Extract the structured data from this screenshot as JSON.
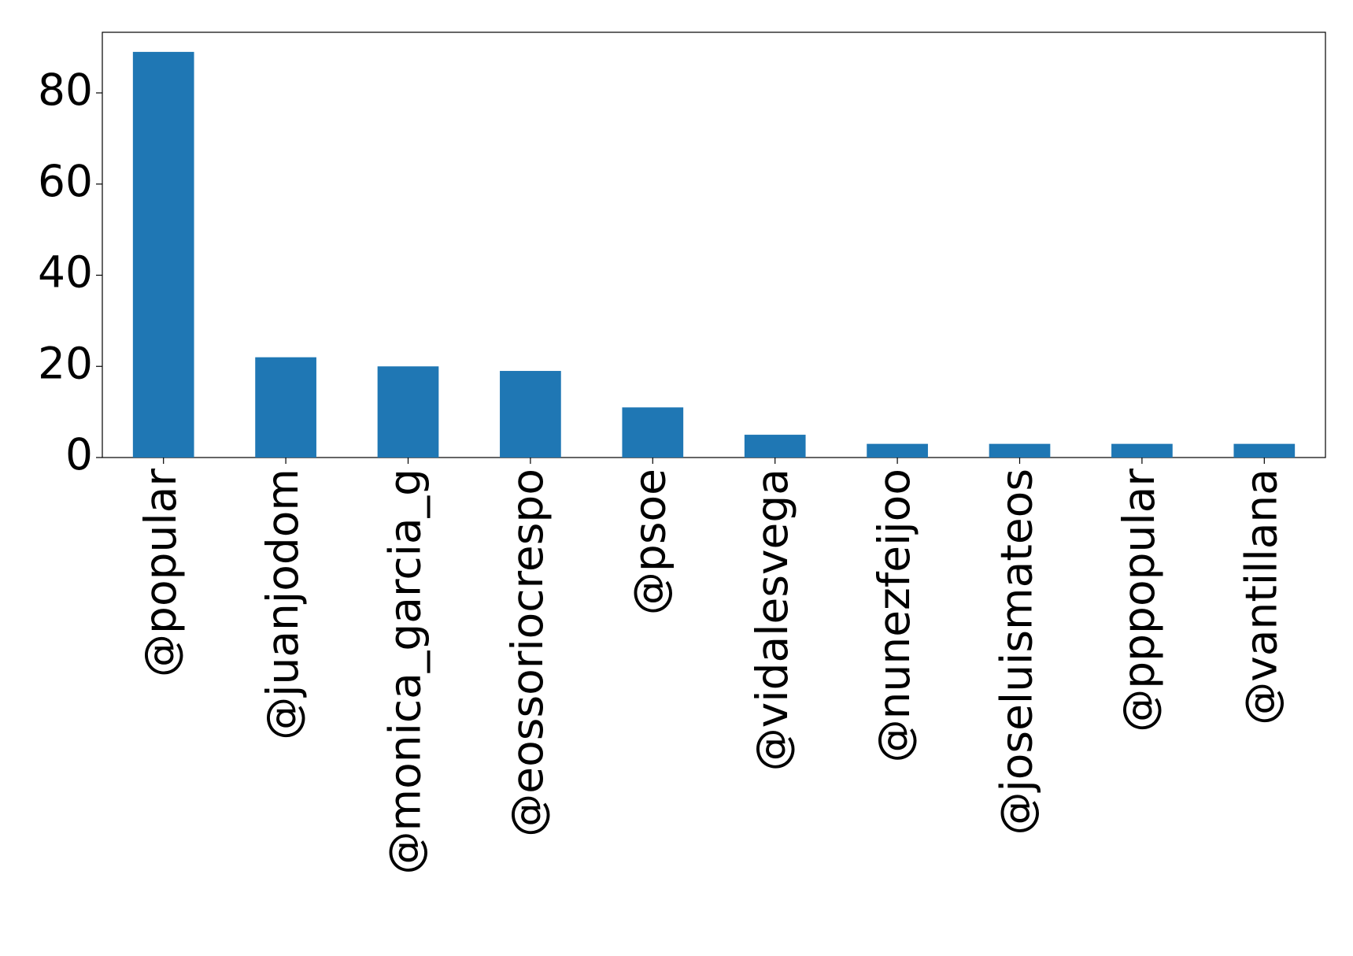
{
  "chart_data": {
    "type": "bar",
    "categories": [
      "@popular",
      "@juanjodom",
      "@monica_garcia_g",
      "@eossoriocrespo",
      "@psoe",
      "@vidalesvega",
      "@nunezfeijoo",
      "@joseluismateos",
      "@pppopular",
      "@vantillana"
    ],
    "values": [
      89,
      22,
      20,
      19,
      11,
      5,
      3,
      3,
      3,
      3
    ],
    "color": "#1f77b4",
    "ylim": [
      0,
      93.3
    ],
    "yticks": [
      0,
      20,
      40,
      60,
      80
    ],
    "grid": false
  }
}
